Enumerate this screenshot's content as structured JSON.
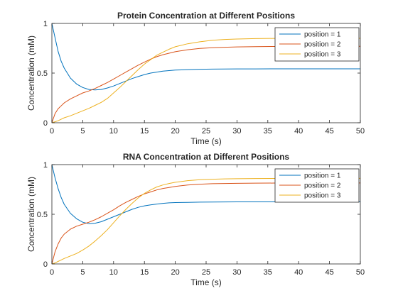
{
  "chart_data": [
    {
      "type": "line",
      "title": "Protein Concentration at Different Positions",
      "xlabel": "Time (s)",
      "ylabel": "Concentration (mM)",
      "xlim": [
        0,
        50
      ],
      "ylim": [
        0,
        1
      ],
      "xticks": [
        0,
        5,
        10,
        15,
        20,
        25,
        30,
        35,
        40,
        45,
        50
      ],
      "yticks": [
        0,
        0.5,
        1
      ],
      "grid": false,
      "legend_position": "top-right",
      "x": [
        0,
        0.5,
        1,
        1.5,
        2,
        3,
        4,
        5,
        6,
        7,
        8,
        9,
        10,
        11,
        12,
        13,
        14,
        15,
        16,
        17,
        18,
        19,
        20,
        22,
        24,
        26,
        28,
        30,
        33,
        36,
        40,
        45,
        50
      ],
      "series": [
        {
          "name": "position = 1",
          "color": "#0072BD",
          "values": [
            1.0,
            0.86,
            0.72,
            0.62,
            0.55,
            0.45,
            0.39,
            0.355,
            0.335,
            0.33,
            0.335,
            0.35,
            0.37,
            0.395,
            0.42,
            0.445,
            0.465,
            0.485,
            0.5,
            0.51,
            0.52,
            0.525,
            0.53,
            0.535,
            0.538,
            0.54,
            0.541,
            0.542,
            0.542,
            0.543,
            0.543,
            0.543,
            0.543
          ]
        },
        {
          "name": "position = 2",
          "color": "#D95319",
          "values": [
            0,
            0.09,
            0.14,
            0.17,
            0.2,
            0.24,
            0.27,
            0.3,
            0.32,
            0.345,
            0.375,
            0.405,
            0.44,
            0.475,
            0.51,
            0.545,
            0.58,
            0.61,
            0.64,
            0.665,
            0.685,
            0.7,
            0.715,
            0.735,
            0.748,
            0.755,
            0.76,
            0.763,
            0.766,
            0.768,
            0.77,
            0.77,
            0.77
          ]
        },
        {
          "name": "position = 3",
          "color": "#EDB120",
          "values": [
            0,
            0.01,
            0.02,
            0.035,
            0.05,
            0.07,
            0.095,
            0.12,
            0.145,
            0.175,
            0.205,
            0.245,
            0.3,
            0.355,
            0.415,
            0.475,
            0.535,
            0.59,
            0.635,
            0.68,
            0.71,
            0.74,
            0.765,
            0.795,
            0.815,
            0.83,
            0.838,
            0.843,
            0.847,
            0.849,
            0.85,
            0.85,
            0.85
          ]
        }
      ]
    },
    {
      "type": "line",
      "title": "RNA Concentration at Different Positions",
      "xlabel": "Time (s)",
      "ylabel": "Concentration (mM)",
      "xlim": [
        0,
        50
      ],
      "ylim": [
        0,
        1
      ],
      "xticks": [
        0,
        5,
        10,
        15,
        20,
        25,
        30,
        35,
        40,
        45,
        50
      ],
      "yticks": [
        0,
        0.5,
        1
      ],
      "grid": false,
      "legend_position": "top-right",
      "x": [
        0,
        0.5,
        1,
        1.5,
        2,
        3,
        4,
        5,
        6,
        7,
        8,
        9,
        10,
        11,
        12,
        13,
        14,
        15,
        16,
        17,
        18,
        19,
        20,
        22,
        24,
        26,
        28,
        30,
        33,
        36,
        40,
        45,
        50
      ],
      "series": [
        {
          "name": "position = 1",
          "color": "#0072BD",
          "values": [
            1.0,
            0.87,
            0.76,
            0.67,
            0.6,
            0.51,
            0.455,
            0.42,
            0.405,
            0.41,
            0.425,
            0.45,
            0.475,
            0.5,
            0.525,
            0.55,
            0.57,
            0.585,
            0.595,
            0.603,
            0.61,
            0.615,
            0.618,
            0.62,
            0.622,
            0.623,
            0.624,
            0.625,
            0.625,
            0.625,
            0.625,
            0.625,
            0.625
          ]
        },
        {
          "name": "position = 2",
          "color": "#D95319",
          "values": [
            0,
            0.12,
            0.2,
            0.26,
            0.3,
            0.35,
            0.38,
            0.4,
            0.42,
            0.445,
            0.475,
            0.51,
            0.545,
            0.585,
            0.62,
            0.65,
            0.68,
            0.705,
            0.725,
            0.745,
            0.76,
            0.77,
            0.78,
            0.795,
            0.803,
            0.808,
            0.81,
            0.812,
            0.813,
            0.814,
            0.815,
            0.815,
            0.815
          ]
        },
        {
          "name": "position = 3",
          "color": "#EDB120",
          "values": [
            0,
            0.01,
            0.025,
            0.04,
            0.055,
            0.08,
            0.105,
            0.14,
            0.18,
            0.23,
            0.285,
            0.345,
            0.415,
            0.485,
            0.55,
            0.61,
            0.665,
            0.71,
            0.745,
            0.775,
            0.795,
            0.81,
            0.822,
            0.838,
            0.848,
            0.853,
            0.856,
            0.858,
            0.86,
            0.861,
            0.862,
            0.862,
            0.862
          ]
        }
      ]
    }
  ]
}
